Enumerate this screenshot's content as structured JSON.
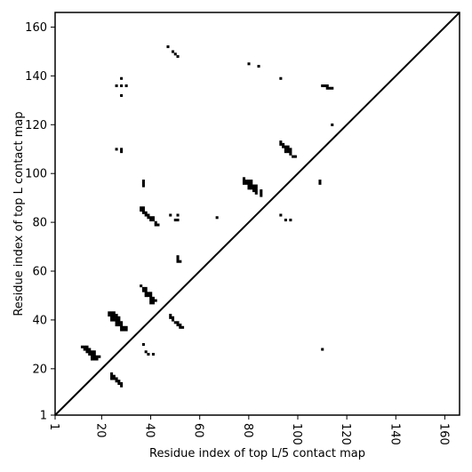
{
  "chart_data": {
    "type": "scatter",
    "title": "",
    "xlabel": "Residue index of top L/5 contact map",
    "ylabel": "Residue index of top L contact map",
    "xlim": [
      1,
      166
    ],
    "ylim": [
      1,
      166
    ],
    "x_ticks": [
      1,
      20,
      40,
      60,
      80,
      100,
      120,
      140,
      160
    ],
    "y_ticks": [
      1,
      20,
      40,
      60,
      80,
      100,
      120,
      140,
      160
    ],
    "diagonal": true,
    "grid": false,
    "series": [
      {
        "marker": "square",
        "color": "#000000",
        "points": [
          [
            12,
            29
          ],
          [
            13,
            29
          ],
          [
            14,
            29
          ],
          [
            13,
            28
          ],
          [
            14,
            28
          ],
          [
            15,
            28
          ],
          [
            14,
            27
          ],
          [
            15,
            27
          ],
          [
            16,
            27
          ],
          [
            17,
            27
          ],
          [
            15,
            26
          ],
          [
            16,
            26
          ],
          [
            17,
            26
          ],
          [
            16,
            25
          ],
          [
            17,
            25
          ],
          [
            18,
            25
          ],
          [
            19,
            25
          ],
          [
            16,
            24
          ],
          [
            17,
            24
          ],
          [
            18,
            24
          ],
          [
            23,
            43
          ],
          [
            24,
            43
          ],
          [
            25,
            43
          ],
          [
            23,
            42
          ],
          [
            24,
            42
          ],
          [
            25,
            42
          ],
          [
            26,
            42
          ],
          [
            24,
            41
          ],
          [
            25,
            41
          ],
          [
            26,
            41
          ],
          [
            27,
            41
          ],
          [
            24,
            40
          ],
          [
            25,
            40
          ],
          [
            26,
            40
          ],
          [
            27,
            40
          ],
          [
            26,
            39
          ],
          [
            27,
            39
          ],
          [
            28,
            39
          ],
          [
            26,
            38
          ],
          [
            27,
            38
          ],
          [
            28,
            38
          ],
          [
            28,
            37
          ],
          [
            29,
            37
          ],
          [
            30,
            37
          ],
          [
            28,
            36
          ],
          [
            29,
            36
          ],
          [
            30,
            36
          ],
          [
            24,
            18
          ],
          [
            24,
            17
          ],
          [
            25,
            17
          ],
          [
            24,
            16
          ],
          [
            25,
            16
          ],
          [
            26,
            16
          ],
          [
            26,
            15
          ],
          [
            27,
            15
          ],
          [
            27,
            14
          ],
          [
            28,
            14
          ],
          [
            28,
            13
          ],
          [
            36,
            54
          ],
          [
            37,
            53
          ],
          [
            38,
            53
          ],
          [
            37,
            52
          ],
          [
            38,
            52
          ],
          [
            38,
            51
          ],
          [
            39,
            51
          ],
          [
            40,
            51
          ],
          [
            38,
            50
          ],
          [
            39,
            50
          ],
          [
            40,
            50
          ],
          [
            40,
            49
          ],
          [
            41,
            49
          ],
          [
            40,
            48
          ],
          [
            41,
            48
          ],
          [
            42,
            48
          ],
          [
            40,
            47
          ],
          [
            41,
            47
          ],
          [
            37,
            30
          ],
          [
            38,
            27
          ],
          [
            39,
            26
          ],
          [
            41,
            26
          ],
          [
            48,
            42
          ],
          [
            48,
            41
          ],
          [
            49,
            41
          ],
          [
            49,
            40
          ],
          [
            50,
            39
          ],
          [
            51,
            39
          ],
          [
            51,
            38
          ],
          [
            52,
            38
          ],
          [
            52,
            37
          ],
          [
            53,
            37
          ],
          [
            36,
            86
          ],
          [
            37,
            86
          ],
          [
            36,
            85
          ],
          [
            37,
            85
          ],
          [
            37,
            84
          ],
          [
            38,
            84
          ],
          [
            38,
            83
          ],
          [
            39,
            83
          ],
          [
            39,
            82
          ],
          [
            40,
            82
          ],
          [
            41,
            82
          ],
          [
            40,
            81
          ],
          [
            41,
            81
          ],
          [
            42,
            80
          ],
          [
            42,
            79
          ],
          [
            43,
            79
          ],
          [
            37,
            97
          ],
          [
            37,
            96
          ],
          [
            37,
            95
          ],
          [
            48,
            83
          ],
          [
            51,
            83
          ],
          [
            50,
            81
          ],
          [
            51,
            81
          ],
          [
            51,
            66
          ],
          [
            51,
            65
          ],
          [
            51,
            64
          ],
          [
            52,
            64
          ],
          [
            67,
            82
          ],
          [
            26,
            110
          ],
          [
            28,
            110
          ],
          [
            28,
            109
          ],
          [
            28,
            139
          ],
          [
            26,
            136
          ],
          [
            28,
            136
          ],
          [
            30,
            136
          ],
          [
            28,
            132
          ],
          [
            47,
            152
          ],
          [
            49,
            150
          ],
          [
            50,
            149
          ],
          [
            51,
            148
          ],
          [
            80,
            145
          ],
          [
            84,
            144
          ],
          [
            78,
            98
          ],
          [
            78,
            97
          ],
          [
            79,
            97
          ],
          [
            80,
            97
          ],
          [
            81,
            97
          ],
          [
            78,
            96
          ],
          [
            79,
            96
          ],
          [
            80,
            96
          ],
          [
            81,
            96
          ],
          [
            80,
            95
          ],
          [
            81,
            95
          ],
          [
            82,
            95
          ],
          [
            83,
            95
          ],
          [
            80,
            94
          ],
          [
            81,
            94
          ],
          [
            82,
            94
          ],
          [
            83,
            94
          ],
          [
            82,
            93
          ],
          [
            83,
            93
          ],
          [
            85,
            93
          ],
          [
            83,
            92
          ],
          [
            85,
            92
          ],
          [
            85,
            91
          ],
          [
            93,
            113
          ],
          [
            93,
            112
          ],
          [
            94,
            112
          ],
          [
            94,
            111
          ],
          [
            95,
            111
          ],
          [
            96,
            111
          ],
          [
            95,
            110
          ],
          [
            96,
            110
          ],
          [
            97,
            110
          ],
          [
            95,
            109
          ],
          [
            96,
            109
          ],
          [
            97,
            109
          ],
          [
            97,
            108
          ],
          [
            98,
            107
          ],
          [
            99,
            107
          ],
          [
            93,
            83
          ],
          [
            95,
            81
          ],
          [
            97,
            81
          ],
          [
            93,
            139
          ],
          [
            109,
            97
          ],
          [
            109,
            96
          ],
          [
            110,
            136
          ],
          [
            111,
            136
          ],
          [
            112,
            136
          ],
          [
            112,
            135
          ],
          [
            113,
            135
          ],
          [
            114,
            135
          ],
          [
            114,
            120
          ],
          [
            110,
            28
          ]
        ]
      }
    ]
  }
}
